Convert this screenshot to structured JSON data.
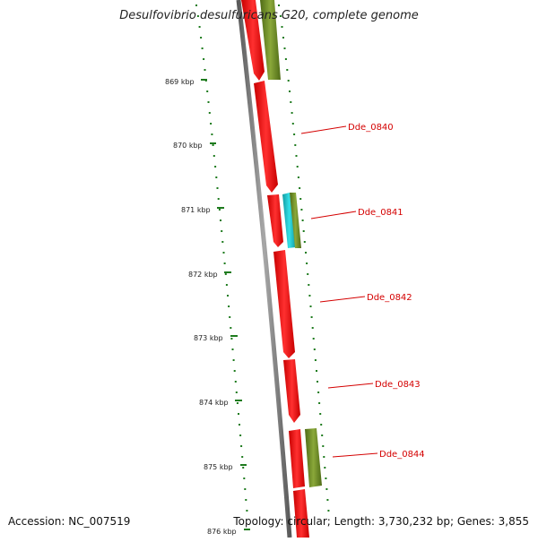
{
  "title": "Desulfovibrio desulfuricans G20, complete genome",
  "footer": {
    "accession": "Accession: NC_007519",
    "summary": "Topology: circular; Length: 3,730,232 bp; Genes: 3,855"
  },
  "colors": {
    "backbone": "#808080",
    "cds_red": "#ff1a1a",
    "cds_olive": "#6b8e23",
    "cds_cyan": "#1ec8d0",
    "tick_green": "#1e7b1e",
    "label_red": "#d40000"
  },
  "scale": {
    "ticks": [
      {
        "label": "869 kbp"
      },
      {
        "label": "870 kbp"
      },
      {
        "label": "871 kbp"
      },
      {
        "label": "872 kbp"
      },
      {
        "label": "873 kbp"
      },
      {
        "label": "874 kbp"
      },
      {
        "label": "875 kbp"
      },
      {
        "label": "876 kbp"
      }
    ]
  },
  "genes": [
    {
      "label": "Dde_0840"
    },
    {
      "label": "Dde_0841"
    },
    {
      "label": "Dde_0842"
    },
    {
      "label": "Dde_0843"
    },
    {
      "label": "Dde_0844"
    }
  ]
}
